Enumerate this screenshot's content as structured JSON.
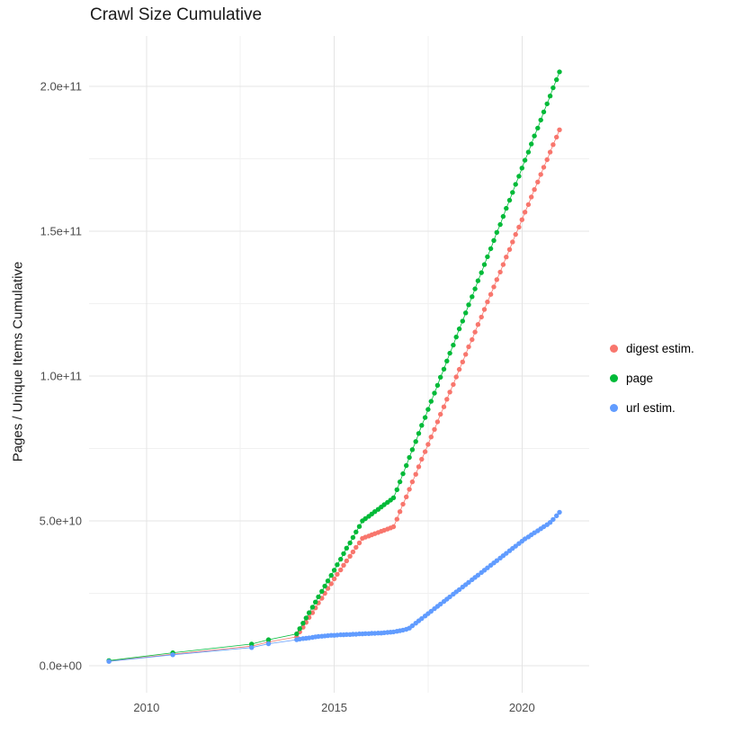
{
  "chart_data": {
    "type": "scatter",
    "title": "Crawl Size Cumulative",
    "xlabel": "",
    "ylabel": "Pages / Unique Items Cumulative",
    "legend_position": "right",
    "grid": {
      "major_color": "#e4e4e4",
      "minor_color": "#f1f1f1",
      "background": "#ffffff"
    },
    "axis_text_color": "#4d4d4d",
    "unit_multiplier": 1000000000.0,
    "xlim": [
      2008.47,
      2021.79
    ],
    "ylim": [
      -9.3,
      217.4
    ],
    "x_ticks": [
      {
        "value": 2010,
        "label": "2010"
      },
      {
        "value": 2015,
        "label": "2015"
      },
      {
        "value": 2020,
        "label": "2020"
      }
    ],
    "x_minor": [
      2012.5,
      2017.5
    ],
    "y_ticks": [
      {
        "value": 0,
        "label": "0.0e+00"
      },
      {
        "value": 50,
        "label": "5.0e+10"
      },
      {
        "value": 100,
        "label": "1.0e+11"
      },
      {
        "value": 150,
        "label": "1.5e+11"
      },
      {
        "value": 200,
        "label": "2.0e+11"
      }
    ],
    "y_minor": [
      25,
      75,
      125,
      175
    ],
    "series": [
      {
        "name": "digest estim.",
        "color": "#F8766D",
        "points": [
          [
            2009,
            1.6
          ],
          [
            2010.7,
            4
          ],
          [
            2012.8,
            6.8
          ],
          [
            2013.25,
            8.2
          ],
          [
            2014,
            10
          ],
          [
            2014.08,
            11.7
          ],
          [
            2014.17,
            13.3
          ],
          [
            2014.25,
            15
          ],
          [
            2014.33,
            16.7
          ],
          [
            2014.42,
            18.3
          ],
          [
            2014.5,
            20
          ],
          [
            2014.58,
            21.7
          ],
          [
            2014.67,
            23.3
          ],
          [
            2014.75,
            25
          ],
          [
            2014.83,
            26.7
          ],
          [
            2014.92,
            28.3
          ],
          [
            2015,
            30
          ],
          [
            2015.08,
            31.6
          ],
          [
            2015.17,
            33.1
          ],
          [
            2015.25,
            34.7
          ],
          [
            2015.33,
            36.2
          ],
          [
            2015.42,
            37.8
          ],
          [
            2015.5,
            39.3
          ],
          [
            2015.58,
            40.9
          ],
          [
            2015.67,
            42.4
          ],
          [
            2015.75,
            44
          ],
          [
            2015.83,
            44.4
          ],
          [
            2015.92,
            44.8
          ],
          [
            2016,
            45.2
          ],
          [
            2016.08,
            45.6
          ],
          [
            2016.17,
            46
          ],
          [
            2016.25,
            46.4
          ],
          [
            2016.33,
            46.8
          ],
          [
            2016.42,
            47.2
          ],
          [
            2016.5,
            47.6
          ],
          [
            2016.58,
            48
          ],
          [
            2016.67,
            50.6
          ],
          [
            2016.75,
            53.2
          ],
          [
            2016.83,
            55.8
          ],
          [
            2016.92,
            58.3
          ],
          [
            2017,
            60.9
          ],
          [
            2017.08,
            63.5
          ],
          [
            2017.17,
            66.1
          ],
          [
            2017.25,
            68.7
          ],
          [
            2017.33,
            71.3
          ],
          [
            2017.42,
            73.9
          ],
          [
            2017.5,
            76.4
          ],
          [
            2017.58,
            79
          ],
          [
            2017.67,
            81.6
          ],
          [
            2017.75,
            84.2
          ],
          [
            2017.83,
            86.8
          ],
          [
            2017.92,
            89.4
          ],
          [
            2018,
            92
          ],
          [
            2018.08,
            94.5
          ],
          [
            2018.17,
            97.1
          ],
          [
            2018.25,
            99.7
          ],
          [
            2018.33,
            102.3
          ],
          [
            2018.42,
            104.9
          ],
          [
            2018.5,
            107.5
          ],
          [
            2018.58,
            110.1
          ],
          [
            2018.67,
            112.6
          ],
          [
            2018.75,
            115.2
          ],
          [
            2018.83,
            117.8
          ],
          [
            2018.92,
            120.4
          ],
          [
            2019,
            123
          ],
          [
            2019.08,
            125.6
          ],
          [
            2019.17,
            128.2
          ],
          [
            2019.25,
            130.8
          ],
          [
            2019.33,
            133.3
          ],
          [
            2019.42,
            135.9
          ],
          [
            2019.5,
            138.5
          ],
          [
            2019.58,
            141.1
          ],
          [
            2019.67,
            143.7
          ],
          [
            2019.75,
            146.3
          ],
          [
            2019.83,
            148.9
          ],
          [
            2019.92,
            151.4
          ],
          [
            2020,
            154
          ],
          [
            2020.08,
            156.6
          ],
          [
            2020.17,
            159.2
          ],
          [
            2020.25,
            161.8
          ],
          [
            2020.33,
            164.4
          ],
          [
            2020.42,
            167
          ],
          [
            2020.5,
            169.6
          ],
          [
            2020.58,
            172.1
          ],
          [
            2020.67,
            174.7
          ],
          [
            2020.75,
            177.3
          ],
          [
            2020.83,
            179.9
          ],
          [
            2020.92,
            182.5
          ],
          [
            2021,
            185
          ]
        ]
      },
      {
        "name": "page",
        "color": "#00BA38",
        "points": [
          [
            2009,
            1.8
          ],
          [
            2010.7,
            4.5
          ],
          [
            2012.8,
            7.5
          ],
          [
            2013.25,
            9
          ],
          [
            2014,
            11
          ],
          [
            2014.08,
            12.8
          ],
          [
            2014.17,
            14.7
          ],
          [
            2014.25,
            16.5
          ],
          [
            2014.33,
            18.3
          ],
          [
            2014.42,
            20.2
          ],
          [
            2014.5,
            22
          ],
          [
            2014.58,
            23.8
          ],
          [
            2014.67,
            25.7
          ],
          [
            2014.75,
            27.5
          ],
          [
            2014.83,
            29.3
          ],
          [
            2014.92,
            31.2
          ],
          [
            2015,
            33
          ],
          [
            2015.08,
            34.9
          ],
          [
            2015.17,
            36.8
          ],
          [
            2015.25,
            38.7
          ],
          [
            2015.33,
            40.6
          ],
          [
            2015.42,
            42.4
          ],
          [
            2015.5,
            44.3
          ],
          [
            2015.58,
            46.2
          ],
          [
            2015.67,
            48.1
          ],
          [
            2015.75,
            50
          ],
          [
            2015.83,
            50.8
          ],
          [
            2015.92,
            51.6
          ],
          [
            2016,
            52.4
          ],
          [
            2016.08,
            53.2
          ],
          [
            2016.17,
            54
          ],
          [
            2016.25,
            54.8
          ],
          [
            2016.33,
            55.6
          ],
          [
            2016.42,
            56.4
          ],
          [
            2016.5,
            57.2
          ],
          [
            2016.58,
            58
          ],
          [
            2016.67,
            60.8
          ],
          [
            2016.75,
            63.5
          ],
          [
            2016.83,
            66.3
          ],
          [
            2016.92,
            69.1
          ],
          [
            2017,
            71.9
          ],
          [
            2017.08,
            74.6
          ],
          [
            2017.17,
            77.4
          ],
          [
            2017.25,
            80.2
          ],
          [
            2017.33,
            83
          ],
          [
            2017.42,
            85.7
          ],
          [
            2017.5,
            88.5
          ],
          [
            2017.58,
            91.3
          ],
          [
            2017.67,
            94.1
          ],
          [
            2017.75,
            96.8
          ],
          [
            2017.83,
            99.6
          ],
          [
            2017.92,
            102.4
          ],
          [
            2018,
            105.2
          ],
          [
            2018.08,
            107.9
          ],
          [
            2018.17,
            110.7
          ],
          [
            2018.25,
            113.5
          ],
          [
            2018.33,
            116.3
          ],
          [
            2018.42,
            119
          ],
          [
            2018.5,
            121.8
          ],
          [
            2018.58,
            124.6
          ],
          [
            2018.67,
            127.4
          ],
          [
            2018.75,
            130.1
          ],
          [
            2018.83,
            132.9
          ],
          [
            2018.92,
            135.7
          ],
          [
            2019,
            138.5
          ],
          [
            2019.08,
            141.2
          ],
          [
            2019.17,
            144
          ],
          [
            2019.25,
            146.8
          ],
          [
            2019.33,
            149.6
          ],
          [
            2019.42,
            152.3
          ],
          [
            2019.5,
            155.1
          ],
          [
            2019.58,
            157.9
          ],
          [
            2019.67,
            160.7
          ],
          [
            2019.75,
            163.4
          ],
          [
            2019.83,
            166.2
          ],
          [
            2019.92,
            169
          ],
          [
            2020,
            171.8
          ],
          [
            2020.08,
            174.5
          ],
          [
            2020.17,
            177.3
          ],
          [
            2020.25,
            180.1
          ],
          [
            2020.33,
            182.9
          ],
          [
            2020.42,
            185.6
          ],
          [
            2020.5,
            188.4
          ],
          [
            2020.58,
            191.2
          ],
          [
            2020.67,
            194
          ],
          [
            2020.75,
            196.7
          ],
          [
            2020.83,
            199.5
          ],
          [
            2020.92,
            202.3
          ],
          [
            2021,
            205
          ]
        ]
      },
      {
        "name": "url estim.",
        "color": "#619CFF",
        "points": [
          [
            2009,
            1.5
          ],
          [
            2010.7,
            3.8
          ],
          [
            2012.8,
            6.3
          ],
          [
            2013.25,
            7.6
          ],
          [
            2014,
            9
          ],
          [
            2014.08,
            9.2
          ],
          [
            2014.17,
            9.4
          ],
          [
            2014.25,
            9.5
          ],
          [
            2014.33,
            9.6
          ],
          [
            2014.42,
            9.8
          ],
          [
            2014.5,
            10
          ],
          [
            2014.58,
            10.1
          ],
          [
            2014.67,
            10.2
          ],
          [
            2014.75,
            10.3
          ],
          [
            2014.83,
            10.4
          ],
          [
            2014.92,
            10.5
          ],
          [
            2015,
            10.5
          ],
          [
            2015.08,
            10.6
          ],
          [
            2015.17,
            10.7
          ],
          [
            2015.25,
            10.7
          ],
          [
            2015.33,
            10.8
          ],
          [
            2015.42,
            10.8
          ],
          [
            2015.5,
            10.9
          ],
          [
            2015.58,
            10.9
          ],
          [
            2015.67,
            11
          ],
          [
            2015.75,
            11
          ],
          [
            2015.83,
            11.1
          ],
          [
            2015.92,
            11.1
          ],
          [
            2016,
            11.2
          ],
          [
            2016.08,
            11.2
          ],
          [
            2016.17,
            11.3
          ],
          [
            2016.25,
            11.3
          ],
          [
            2016.33,
            11.4
          ],
          [
            2016.42,
            11.5
          ],
          [
            2016.5,
            11.6
          ],
          [
            2016.58,
            11.7
          ],
          [
            2016.67,
            11.9
          ],
          [
            2016.75,
            12.1
          ],
          [
            2016.83,
            12.3
          ],
          [
            2016.92,
            12.6
          ],
          [
            2017,
            13
          ],
          [
            2017.08,
            13.8
          ],
          [
            2017.17,
            14.7
          ],
          [
            2017.25,
            15.5
          ],
          [
            2017.33,
            16.3
          ],
          [
            2017.42,
            17.2
          ],
          [
            2017.5,
            18
          ],
          [
            2017.58,
            18.8
          ],
          [
            2017.67,
            19.7
          ],
          [
            2017.75,
            20.5
          ],
          [
            2017.83,
            21.3
          ],
          [
            2017.92,
            22.2
          ],
          [
            2018,
            23
          ],
          [
            2018.08,
            23.8
          ],
          [
            2018.17,
            24.7
          ],
          [
            2018.25,
            25.5
          ],
          [
            2018.33,
            26.3
          ],
          [
            2018.42,
            27.2
          ],
          [
            2018.5,
            28
          ],
          [
            2018.58,
            28.8
          ],
          [
            2018.67,
            29.7
          ],
          [
            2018.75,
            30.5
          ],
          [
            2018.83,
            31.3
          ],
          [
            2018.92,
            32.2
          ],
          [
            2019,
            33
          ],
          [
            2019.08,
            33.8
          ],
          [
            2019.17,
            34.7
          ],
          [
            2019.25,
            35.5
          ],
          [
            2019.33,
            36.3
          ],
          [
            2019.42,
            37.2
          ],
          [
            2019.5,
            38
          ],
          [
            2019.58,
            38.8
          ],
          [
            2019.67,
            39.7
          ],
          [
            2019.75,
            40.5
          ],
          [
            2019.83,
            41.3
          ],
          [
            2019.92,
            42.2
          ],
          [
            2020,
            43
          ],
          [
            2020.08,
            43.8
          ],
          [
            2020.17,
            44.5
          ],
          [
            2020.25,
            45.2
          ],
          [
            2020.33,
            45.9
          ],
          [
            2020.42,
            46.6
          ],
          [
            2020.5,
            47.3
          ],
          [
            2020.58,
            48
          ],
          [
            2020.67,
            48.7
          ],
          [
            2020.75,
            49.5
          ],
          [
            2020.83,
            50.5
          ],
          [
            2020.92,
            51.8
          ],
          [
            2021,
            53
          ]
        ]
      }
    ]
  }
}
